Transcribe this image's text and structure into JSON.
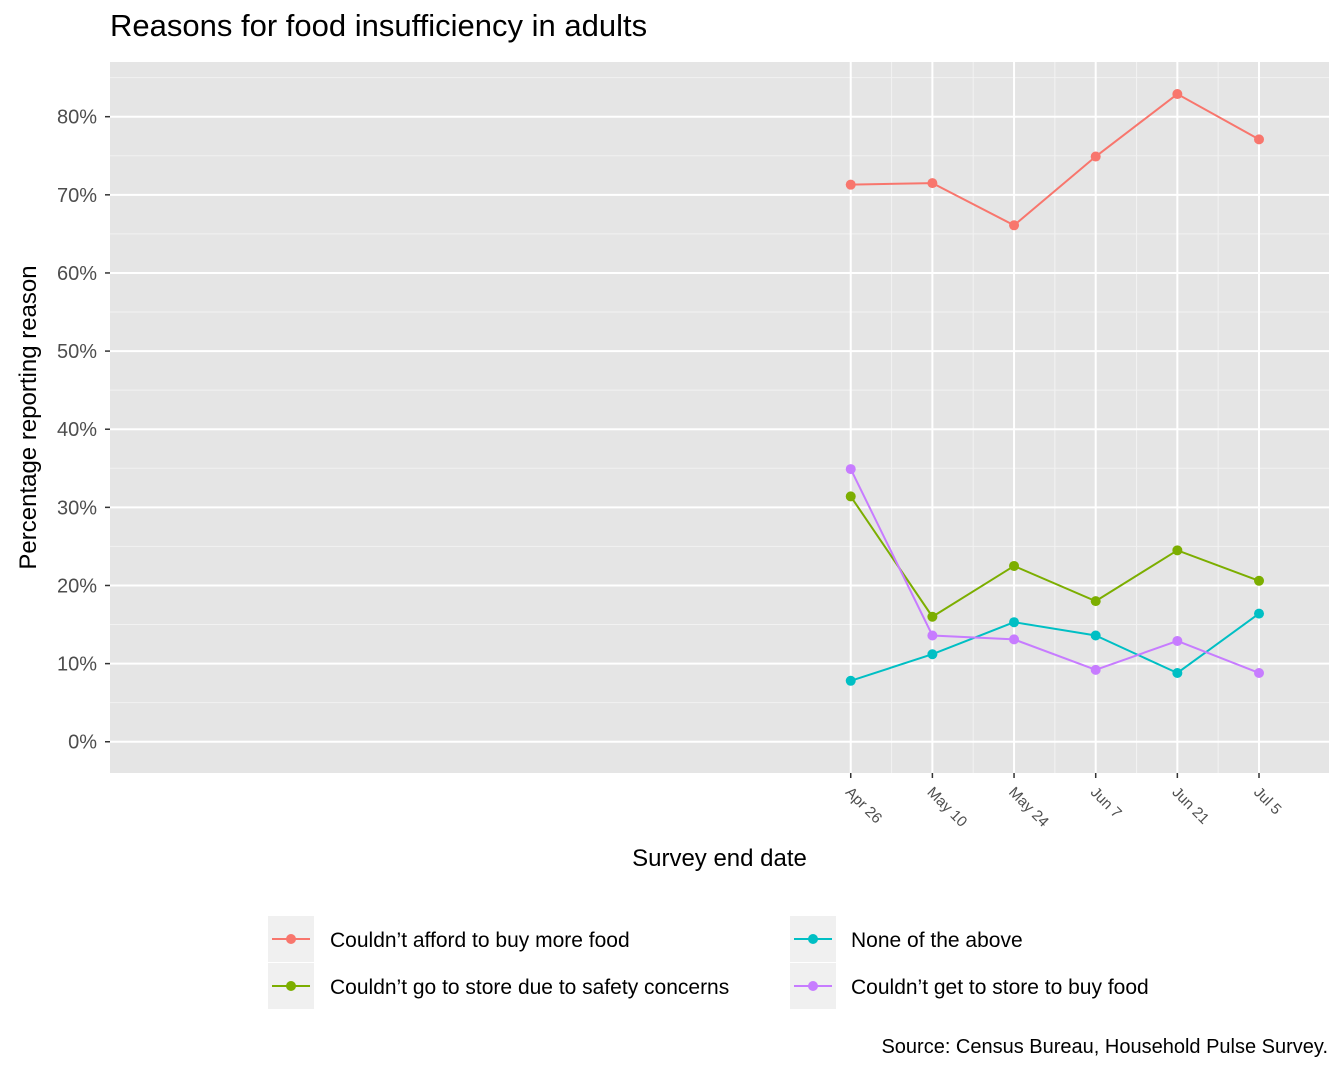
{
  "chart_data": {
    "type": "line",
    "title": "Reasons for food insufficiency in adults",
    "xlabel": "Survey end date",
    "ylabel": "Percentage reporting reason",
    "x": [
      "2020-04-26",
      "2020-05-10",
      "2020-05-24",
      "2020-06-07",
      "2020-06-21",
      "2020-07-05"
    ],
    "x_tick_labels": [
      "Apr 26",
      "May 10",
      "May 24",
      "Jun  7",
      "Jun 21",
      "Jul  5"
    ],
    "x_range": [
      "2019-12-21",
      "2020-07-17"
    ],
    "y_ticks": [
      0,
      10,
      20,
      30,
      40,
      50,
      60,
      70,
      80
    ],
    "y_tick_labels": [
      "0%",
      "10%",
      "20%",
      "30%",
      "40%",
      "50%",
      "60%",
      "70%",
      "80%"
    ],
    "ylim": [
      -4,
      87
    ],
    "grid": true,
    "legend_position": "bottom",
    "series": [
      {
        "name": "Couldn’t afford to buy more food",
        "color": "#F8766D",
        "values": [
          71.3,
          71.5,
          66.1,
          74.9,
          82.9,
          77.1
        ]
      },
      {
        "name": "Couldn’t go to store due to safety concerns",
        "color": "#7CAE00",
        "values": [
          31.4,
          16.0,
          22.5,
          18.0,
          24.5,
          20.6
        ]
      },
      {
        "name": "None of the above",
        "color": "#00BFC4",
        "values": [
          7.8,
          11.2,
          15.3,
          13.6,
          8.8,
          16.4
        ]
      },
      {
        "name": "Couldn’t get to store to buy food",
        "color": "#C77CFF",
        "values": [
          34.9,
          13.6,
          13.1,
          9.2,
          12.9,
          8.8
        ]
      }
    ],
    "caption": "Source: Census Bureau, Household Pulse Survey."
  }
}
